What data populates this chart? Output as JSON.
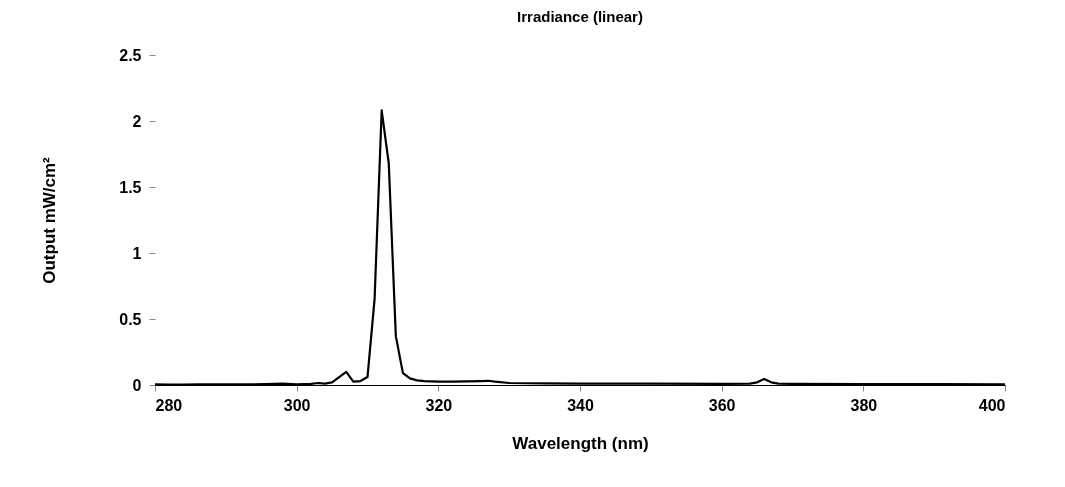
{
  "chart_data": {
    "type": "line",
    "title": "Irradiance (linear)",
    "xlabel": "Wavelength (nm)",
    "ylabel": "Output mW/cm²",
    "x": [
      280,
      282,
      284,
      286,
      290,
      294,
      297,
      298,
      300,
      302,
      303,
      304,
      305,
      306,
      307,
      308,
      309,
      310,
      311,
      312,
      313,
      314,
      315,
      316,
      317,
      318,
      320,
      322,
      324,
      326,
      327,
      328,
      330,
      335,
      340,
      350,
      360,
      364,
      365,
      366,
      367,
      368,
      370,
      380,
      390,
      400
    ],
    "series": [
      {
        "color": "#000000",
        "values": [
          0.005,
          0.003,
          0.003,
          0.005,
          0.005,
          0.005,
          0.008,
          0.01,
          0.005,
          0.008,
          0.015,
          0.01,
          0.02,
          0.06,
          0.1,
          0.025,
          0.03,
          0.06,
          0.65,
          2.08,
          1.68,
          0.37,
          0.09,
          0.05,
          0.035,
          0.03,
          0.025,
          0.025,
          0.028,
          0.03,
          0.032,
          0.025,
          0.015,
          0.012,
          0.01,
          0.01,
          0.008,
          0.01,
          0.02,
          0.045,
          0.02,
          0.01,
          0.008,
          0.007,
          0.006,
          0.005
        ]
      }
    ],
    "xlim": [
      280,
      400
    ],
    "xticks": [
      280,
      300,
      320,
      340,
      360,
      380,
      400
    ],
    "ylim": [
      0,
      2.5
    ],
    "yticks": [
      0,
      0.5,
      1,
      1.5,
      2,
      2.5
    ],
    "grid": false,
    "legend": false,
    "marker": "none",
    "line_style": "solid"
  }
}
